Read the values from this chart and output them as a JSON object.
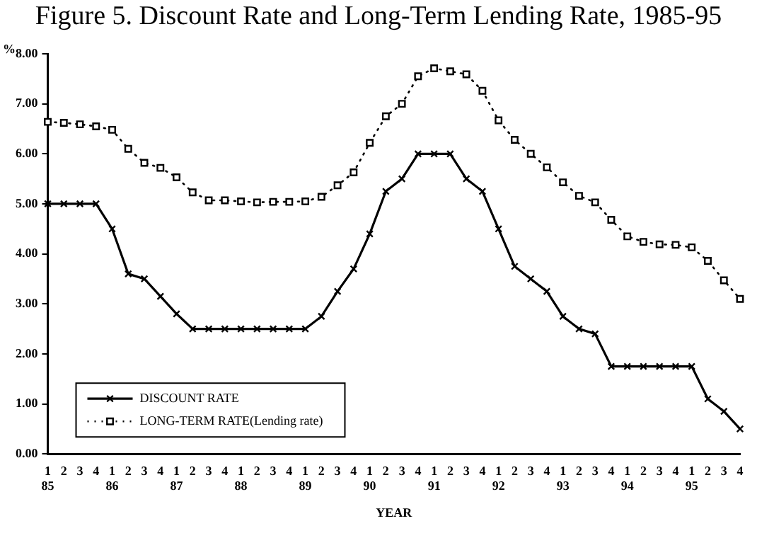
{
  "chart_data": {
    "type": "line",
    "title": "Figure 5.   Discount Rate and Long-Term Lending Rate, 1985-95",
    "xlabel": "YEAR",
    "ylabel": "%",
    "categories": [
      "1\n85",
      "2",
      "3",
      "4",
      "1\n86",
      "2",
      "3",
      "4",
      "1\n87",
      "2",
      "3",
      "4",
      "1\n88",
      "2",
      "3",
      "4",
      "1\n89",
      "2",
      "3",
      "4",
      "1\n90",
      "2",
      "3",
      "4",
      "1\n91",
      "2",
      "3",
      "4",
      "1\n92",
      "2",
      "3",
      "4",
      "1\n93",
      "2",
      "3",
      "4",
      "1\n94",
      "2",
      "3",
      "4",
      "1\n95",
      "2",
      "3",
      "4"
    ],
    "series": [
      {
        "name": "DISCOUNT RATE",
        "color": "#000000",
        "marker": "cross",
        "line_style": "solid",
        "values": [
          5,
          5,
          5,
          5,
          4.5,
          3.6,
          3.5,
          3.15,
          2.8,
          2.5,
          2.5,
          2.5,
          2.5,
          2.5,
          2.5,
          2.5,
          2.5,
          2.75,
          3.25,
          3.7,
          4.4,
          5.25,
          5.5,
          6,
          6,
          6,
          5.5,
          5.25,
          4.5,
          3.75,
          3.5,
          3.25,
          2.75,
          2.5,
          2.4,
          1.75,
          1.75,
          1.75,
          1.75,
          1.75,
          1.75,
          1.1,
          0.85,
          0.5
        ]
      },
      {
        "name": "LONG-TERM RATE(Lending rate)",
        "color": "#000000",
        "marker": "square",
        "line_style": "dotted",
        "values": [
          6.64,
          6.62,
          6.59,
          6.55,
          6.48,
          6.1,
          5.82,
          5.72,
          5.53,
          5.23,
          5.07,
          5.07,
          5.05,
          5.03,
          5.04,
          5.04,
          5.05,
          5.14,
          5.37,
          5.63,
          6.22,
          6.75,
          7,
          7.55,
          7.71,
          7.65,
          7.59,
          7.26,
          6.67,
          6.28,
          6,
          5.73,
          5.43,
          5.16,
          5.03,
          4.68,
          4.35,
          4.24,
          4.19,
          4.18,
          4.13,
          3.86,
          3.47,
          3.1
        ]
      }
    ],
    "ylim": [
      0,
      8
    ],
    "yticks": [
      {
        "value": 0,
        "label": "0.00"
      },
      {
        "value": 1,
        "label": "1.00"
      },
      {
        "value": 2,
        "label": "2.00"
      },
      {
        "value": 3,
        "label": "3.00"
      },
      {
        "value": 4,
        "label": "4.00"
      },
      {
        "value": 5,
        "label": "5.00"
      },
      {
        "value": 6,
        "label": "6.00"
      },
      {
        "value": 7,
        "label": "7.00"
      },
      {
        "value": 8,
        "label": "8.00"
      }
    ],
    "grid": false,
    "legend": "bottom left"
  }
}
